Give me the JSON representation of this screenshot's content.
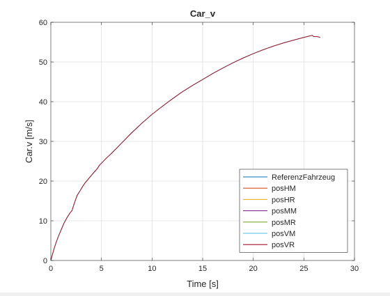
{
  "chart_data": {
    "type": "line",
    "title": "Car_v",
    "xlabel": "Time [s]",
    "ylabel": "Car.v [m/s]",
    "xlim": [
      0,
      30
    ],
    "ylim": [
      0,
      60
    ],
    "xticks": [
      0,
      5,
      10,
      15,
      20,
      25,
      30
    ],
    "yticks": [
      0,
      10,
      20,
      30,
      40,
      50,
      60
    ],
    "grid": true,
    "legend_position": "bottom-right",
    "x": [
      0,
      0.1,
      0.3,
      0.5,
      0.8,
      1.0,
      1.3,
      1.6,
      1.9,
      2.1,
      2.2,
      2.4,
      2.6,
      2.9,
      3.1,
      3.4,
      3.8,
      4.2,
      4.6,
      4.8,
      5.0,
      5.5,
      6.0,
      6.5,
      7.0,
      8.0,
      9.0,
      10.0,
      11.0,
      12.0,
      13.0,
      14.0,
      15.0,
      16.0,
      17.0,
      18.0,
      19.0,
      20.0,
      21.0,
      22.0,
      23.0,
      24.0,
      25.0,
      25.8,
      26.0,
      26.3,
      26.6
    ],
    "values": [
      0,
      1.0,
      2.8,
      4.4,
      6.4,
      7.6,
      9.4,
      10.8,
      12.0,
      12.6,
      13.5,
      15.0,
      16.4,
      17.6,
      18.5,
      19.6,
      20.8,
      22.0,
      23.2,
      24.0,
      24.5,
      25.8,
      27.0,
      28.3,
      29.6,
      32.2,
      34.6,
      36.8,
      38.8,
      40.7,
      42.5,
      44.1,
      45.6,
      47.1,
      48.5,
      49.8,
      51.0,
      52.1,
      53.1,
      54.0,
      54.8,
      55.5,
      56.2,
      56.7,
      56.4,
      56.4,
      56.2
    ],
    "series": [
      {
        "name": "ReferenzFahrzeug",
        "color": "#0072bd"
      },
      {
        "name": "posHM",
        "color": "#d95319"
      },
      {
        "name": "posHR",
        "color": "#edb120"
      },
      {
        "name": "posMM",
        "color": "#7e2f8e"
      },
      {
        "name": "posMR",
        "color": "#77ac30"
      },
      {
        "name": "posVM",
        "color": "#4dbeee"
      },
      {
        "name": "posVR",
        "color": "#a2142f"
      }
    ]
  }
}
